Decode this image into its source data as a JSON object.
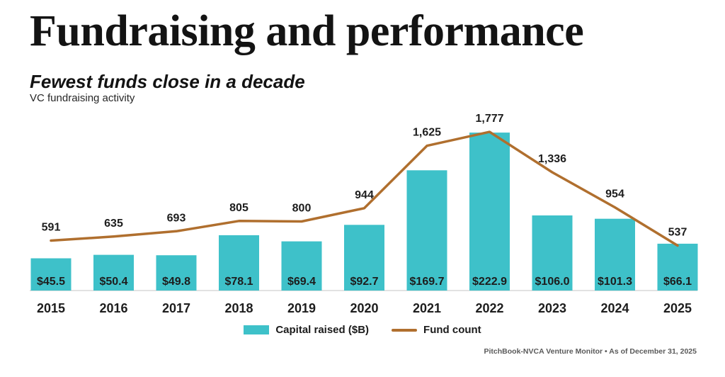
{
  "page": {
    "title": "Fundraising and performance",
    "subtitle": "Fewest funds close in a decade",
    "chart_label": "VC fundraising activity",
    "source_note": "PitchBook-NVCA Venture Monitor  •  As of December 31, 2025"
  },
  "legend": {
    "bar_label": "Capital raised ($B)",
    "line_label": "Fund count"
  },
  "colors": {
    "bar": "#3EC1C9",
    "line": "#B06F2E",
    "axis": "#D8D8D8",
    "label_text": "#1D1D1D",
    "source_text": "#5A5A5A"
  },
  "chart_data": {
    "type": "bar+line combo",
    "title": "VC fundraising activity",
    "categories": [
      "2015",
      "2016",
      "2017",
      "2018",
      "2019",
      "2020",
      "2021",
      "2022",
      "2023",
      "2024",
      "2025"
    ],
    "series": [
      {
        "name": "Capital raised ($B)",
        "type": "bar",
        "values": [
          45.5,
          50.4,
          49.8,
          78.1,
          69.4,
          92.7,
          169.7,
          222.9,
          106.0,
          101.3,
          66.1
        ],
        "labels": [
          "$45.5",
          "$50.4",
          "$49.8",
          "$78.1",
          "$69.4",
          "$92.7",
          "$169.7",
          "$222.9",
          "$106.0",
          "$101.3",
          "$66.1"
        ]
      },
      {
        "name": "Fund count",
        "type": "line",
        "values": [
          591,
          635,
          693,
          805,
          800,
          944,
          1625,
          1777,
          1336,
          954,
          537
        ],
        "labels": [
          "591",
          "635",
          "693",
          "805",
          "800",
          "944",
          "1,625",
          "1,777",
          "1,336",
          "954",
          "537"
        ]
      }
    ],
    "xlabel": "",
    "ylabel": "",
    "bar_axis_range": [
      0,
      250
    ],
    "line_axis_range": [
      0,
      1900
    ],
    "grid": false,
    "y_axis_labels_visible": false,
    "data_labels_visible": true,
    "legend_position": "bottom"
  }
}
